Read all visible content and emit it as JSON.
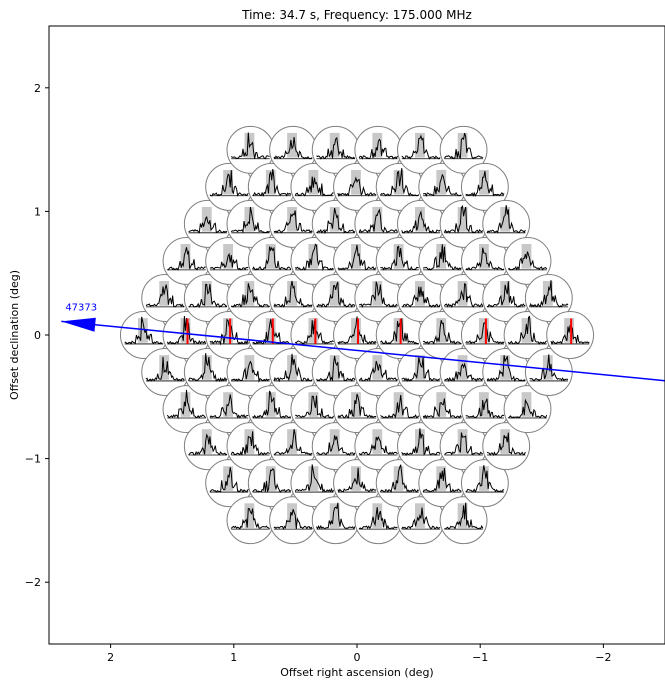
{
  "chart_data": {
    "type": "scatter",
    "title": "Time: 34.7 s, Frequency: 175.000 MHz",
    "xlabel": "Offset right ascension (deg)",
    "ylabel": "Offset declination (deg)",
    "xlim": [
      2.5,
      -2.5
    ],
    "ylim": [
      -2.5,
      2.5
    ],
    "x_ticks": [
      {
        "value": 2,
        "label": "2"
      },
      {
        "value": 1,
        "label": "1"
      },
      {
        "value": 0,
        "label": "0"
      },
      {
        "value": -1,
        "label": "−1"
      },
      {
        "value": -2,
        "label": "−2"
      }
    ],
    "y_ticks": [
      {
        "value": 2,
        "label": "2"
      },
      {
        "value": 1,
        "label": "1"
      },
      {
        "value": 0,
        "label": "0"
      },
      {
        "value": -1,
        "label": "−1"
      },
      {
        "value": -2,
        "label": "−2"
      }
    ],
    "grid": false,
    "beam_layout": {
      "shape": "hexagon",
      "rings": 5,
      "beam_spacing_deg": 0.346,
      "beam_radius_deg": 0.19,
      "beam_count": 91
    },
    "highlighted_beams": [
      {
        "x": 1.73,
        "y": 0.2
      },
      {
        "x": 1.38,
        "y": 0.0
      },
      {
        "x": 1.04,
        "y": -0.1
      },
      {
        "x": 0.69,
        "y": 0.0
      },
      {
        "x": 0.35,
        "y": -0.1
      },
      {
        "x": 0.0,
        "y": 0.0
      },
      {
        "x": -0.35,
        "y": -0.1
      },
      {
        "x": -1.04,
        "y": -0.1
      },
      {
        "x": -1.38,
        "y": -0.2
      },
      {
        "x": -1.73,
        "y": -0.1
      }
    ],
    "track": {
      "label": "47373",
      "start": [
        2.4,
        0.11
      ],
      "end": [
        -2.5,
        -0.37
      ]
    },
    "colors": {
      "track": "#0000ff",
      "beam_outline": "#7f7f7f",
      "spectrum": "#000000",
      "band": "#c8c8c8",
      "highlight": "#ff0000"
    }
  }
}
